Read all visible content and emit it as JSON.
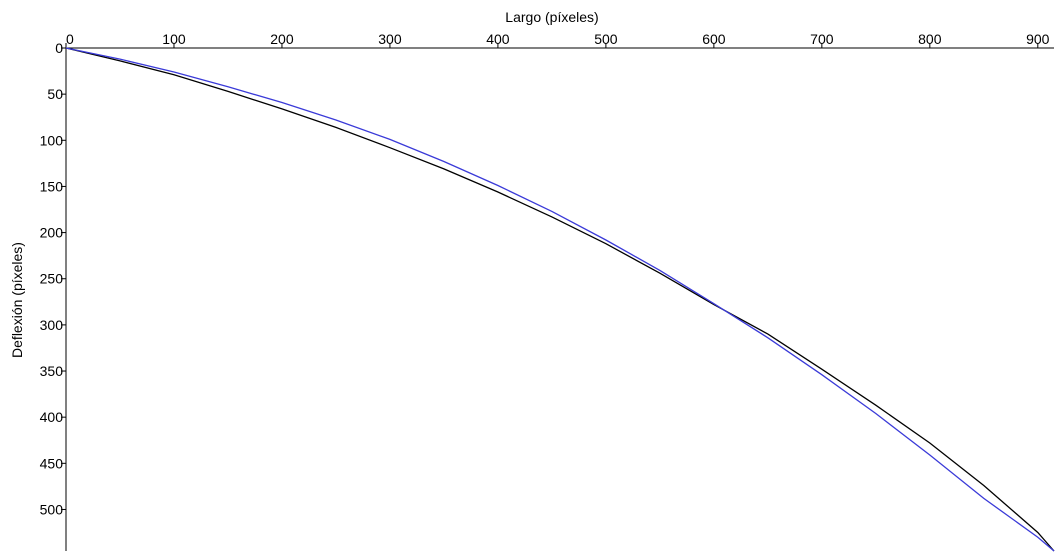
{
  "chart_data": {
    "type": "line",
    "title": "",
    "xlabel": "Largo (píxeles)",
    "ylabel": "Deflexión (píxeles)",
    "x_axis_position": "top",
    "y_axis_inverted": true,
    "xlim": [
      0,
      915
    ],
    "ylim": [
      0,
      545
    ],
    "xticks": [
      0,
      100,
      200,
      300,
      400,
      500,
      600,
      700,
      800,
      900
    ],
    "yticks": [
      0,
      50,
      100,
      150,
      200,
      250,
      300,
      350,
      400,
      450,
      500
    ],
    "grid": false,
    "legend": "none",
    "series": [
      {
        "color": "#000000",
        "x": [
          0,
          50,
          100,
          150,
          200,
          250,
          300,
          350,
          400,
          450,
          500,
          550,
          600,
          650,
          700,
          750,
          800,
          850,
          900,
          915
        ],
        "y": [
          0,
          14,
          29,
          47,
          66,
          86,
          108,
          131,
          156,
          183,
          212,
          244,
          278,
          310,
          348,
          387,
          428,
          474,
          525,
          545
        ]
      },
      {
        "color": "#3a3ad8",
        "x": [
          0,
          50,
          100,
          150,
          200,
          250,
          300,
          350,
          400,
          450,
          500,
          550,
          600,
          650,
          700,
          750,
          800,
          850,
          900,
          915
        ],
        "y": [
          0,
          12,
          26,
          42,
          59,
          78,
          99,
          123,
          149,
          177,
          208,
          241,
          277,
          314,
          354,
          396,
          441,
          488,
          530,
          545
        ]
      }
    ]
  }
}
